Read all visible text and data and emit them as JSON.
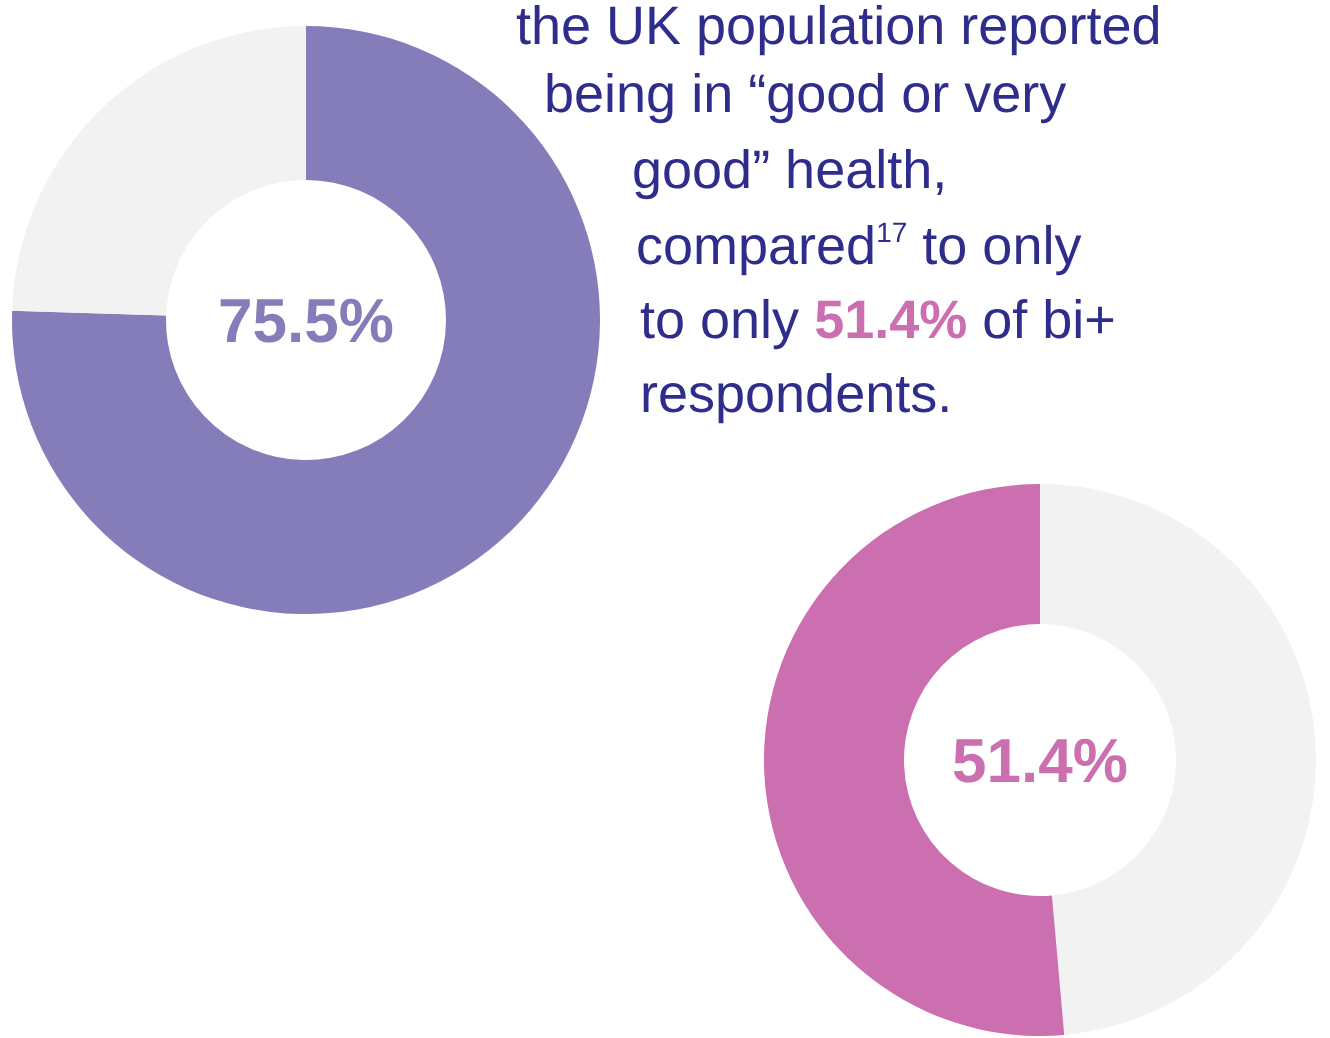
{
  "chart_data": [
    {
      "type": "donut",
      "categories": [
        null,
        null
      ],
      "values": [
        75.5,
        24.5
      ],
      "colors": [
        "#857dba",
        "#f2f2f2"
      ],
      "value_labels": [
        "75.5%",
        null
      ]
    },
    {
      "type": "donut",
      "categories": [
        null,
        null
      ],
      "values": [
        48.6,
        51.4
      ],
      "colors": [
        "#f2f2f2",
        "#cb6fb0"
      ],
      "value_labels": [
        null,
        "51.4%"
      ]
    },
    {
      "type": "other",
      "annotations": [
        "the UK population reported",
        "being in “good or very",
        "good” health,",
        "compared$^{17}$ to only",
        "to only 51.4% of bi+",
        "respondents."
      ]
    }
  ]
}
